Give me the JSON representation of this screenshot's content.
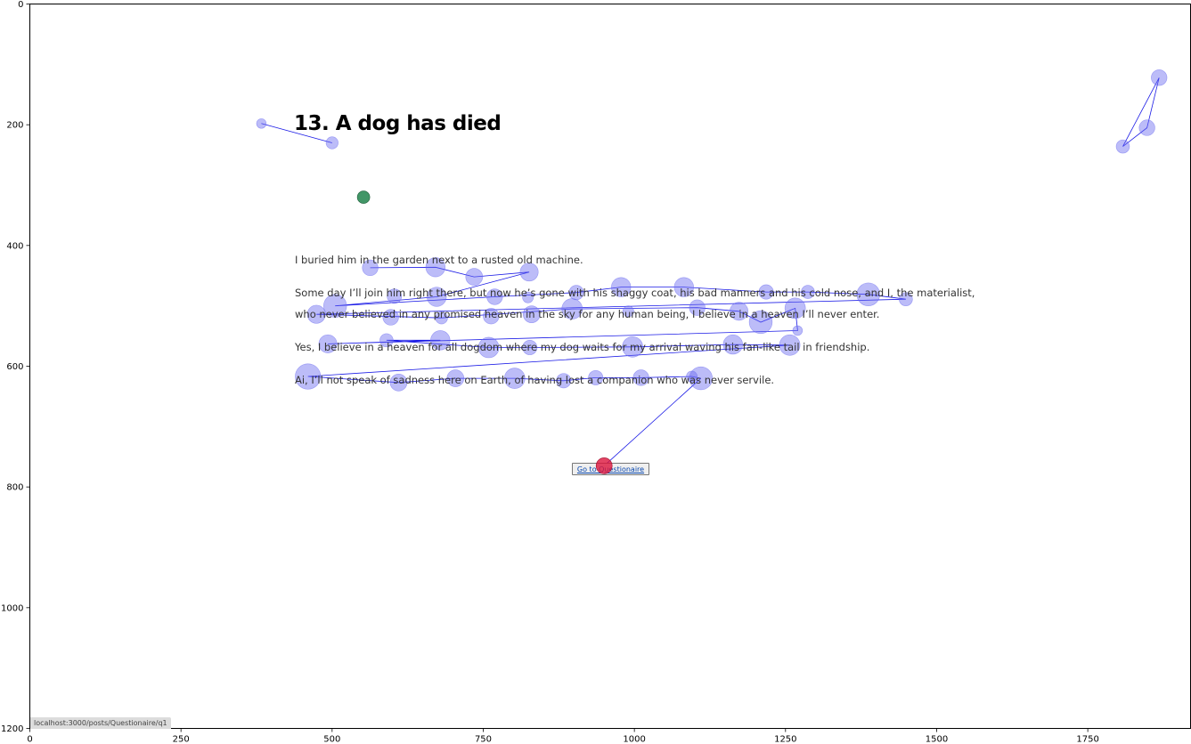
{
  "page": {
    "title": "13. A dog has died",
    "lines": [
      "I buried him in the garden next to a rusted old machine.",
      "Some day I’ll join him right there, but now he’s gone with his shaggy coat, his bad manners and his cold nose, and I, the materialist,",
      "who never believed in any promised heaven in the sky for any human being, I believe in a heaven I’ll never enter.",
      "Yes, I believe in a heaven for all dogdom where my dog waits for my arrival waving his fan-like tail in friendship.",
      "Ai, I’ll not speak of sadness here on Earth, of having lost a companion who was never servile."
    ],
    "button_label": "Go to Questionaire",
    "status_url": "localhost:3000/posts/Questionaire/q1"
  },
  "colors": {
    "fixation_fill": "#6b6bf0",
    "scanpath_line": "#1a1ae6",
    "start_marker": "#2e8b57",
    "end_marker": "#dc143c"
  },
  "chart_data": {
    "type": "scatter",
    "title": "",
    "xlabel": "",
    "ylabel": "",
    "xlim": [
      0,
      1920
    ],
    "ylim": [
      1200,
      0
    ],
    "y_inverted": true,
    "grid": false,
    "xticks": [
      0,
      250,
      500,
      750,
      1000,
      1250,
      1500,
      1750
    ],
    "yticks": [
      0,
      200,
      400,
      600,
      800,
      1000,
      1200
    ],
    "start_point": {
      "x": 552,
      "y": 320
    },
    "end_point": {
      "x": 950,
      "y": 765
    },
    "fixations": [
      {
        "x": 383,
        "y": 198,
        "r": 8
      },
      {
        "x": 500,
        "y": 230,
        "r": 10
      },
      {
        "x": 1868,
        "y": 122,
        "r": 13
      },
      {
        "x": 1848,
        "y": 205,
        "r": 13
      },
      {
        "x": 1808,
        "y": 236,
        "r": 11
      },
      {
        "x": 563,
        "y": 437,
        "r": 13
      },
      {
        "x": 671,
        "y": 436,
        "r": 16
      },
      {
        "x": 735,
        "y": 452,
        "r": 14
      },
      {
        "x": 826,
        "y": 444,
        "r": 15
      },
      {
        "x": 904,
        "y": 478,
        "r": 12
      },
      {
        "x": 978,
        "y": 469,
        "r": 16
      },
      {
        "x": 1082,
        "y": 469,
        "r": 16
      },
      {
        "x": 1218,
        "y": 477,
        "r": 12
      },
      {
        "x": 1287,
        "y": 477,
        "r": 11
      },
      {
        "x": 1387,
        "y": 481,
        "r": 19
      },
      {
        "x": 1449,
        "y": 489,
        "r": 11
      },
      {
        "x": 603,
        "y": 484,
        "r": 12
      },
      {
        "x": 673,
        "y": 485,
        "r": 16
      },
      {
        "x": 769,
        "y": 485,
        "r": 13
      },
      {
        "x": 824,
        "y": 486,
        "r": 9
      },
      {
        "x": 505,
        "y": 500,
        "r": 19
      },
      {
        "x": 474,
        "y": 514,
        "r": 15
      },
      {
        "x": 597,
        "y": 519,
        "r": 13
      },
      {
        "x": 681,
        "y": 520,
        "r": 10
      },
      {
        "x": 763,
        "y": 517,
        "r": 13
      },
      {
        "x": 830,
        "y": 514,
        "r": 14
      },
      {
        "x": 897,
        "y": 505,
        "r": 17
      },
      {
        "x": 990,
        "y": 509,
        "r": 9
      },
      {
        "x": 1104,
        "y": 503,
        "r": 13
      },
      {
        "x": 1173,
        "y": 509,
        "r": 15
      },
      {
        "x": 1209,
        "y": 527,
        "r": 19
      },
      {
        "x": 1266,
        "y": 504,
        "r": 17
      },
      {
        "x": 1270,
        "y": 541,
        "r": 8
      },
      {
        "x": 493,
        "y": 563,
        "r": 15
      },
      {
        "x": 590,
        "y": 557,
        "r": 11
      },
      {
        "x": 679,
        "y": 557,
        "r": 16
      },
      {
        "x": 759,
        "y": 569,
        "r": 17
      },
      {
        "x": 827,
        "y": 569,
        "r": 12
      },
      {
        "x": 997,
        "y": 568,
        "r": 17
      },
      {
        "x": 1163,
        "y": 564,
        "r": 16
      },
      {
        "x": 1257,
        "y": 565,
        "r": 17
      },
      {
        "x": 460,
        "y": 617,
        "r": 21
      },
      {
        "x": 610,
        "y": 627,
        "r": 14
      },
      {
        "x": 704,
        "y": 620,
        "r": 14
      },
      {
        "x": 802,
        "y": 620,
        "r": 17
      },
      {
        "x": 883,
        "y": 624,
        "r": 12
      },
      {
        "x": 936,
        "y": 619,
        "r": 12
      },
      {
        "x": 1011,
        "y": 619,
        "r": 13
      },
      {
        "x": 1095,
        "y": 617,
        "r": 9
      },
      {
        "x": 1110,
        "y": 620,
        "r": 19
      }
    ],
    "scanpath_order": [
      [
        0,
        1
      ],
      [
        2,
        3,
        4,
        2
      ],
      [
        5,
        6,
        7,
        8,
        17,
        20,
        18,
        9,
        10,
        11,
        12,
        13,
        14,
        15,
        21,
        23,
        26,
        28,
        29,
        30,
        31,
        32,
        33,
        35,
        34,
        36,
        37,
        38,
        39,
        40,
        41,
        42,
        43,
        44,
        45,
        46,
        47,
        48,
        49
      ]
    ]
  }
}
